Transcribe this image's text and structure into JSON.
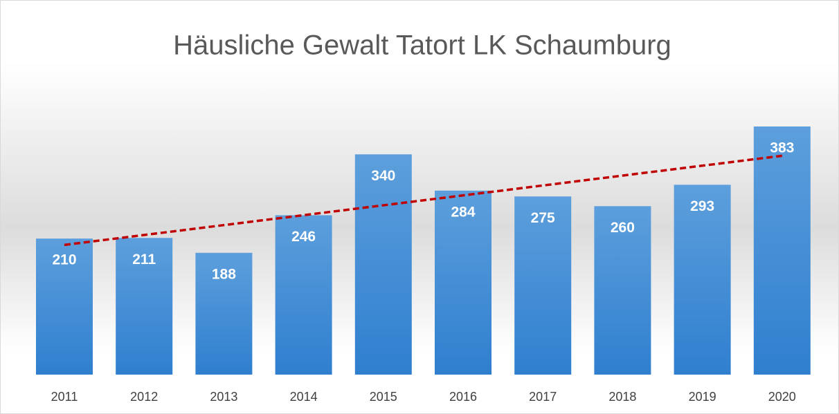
{
  "chart_data": {
    "type": "bar",
    "title": "Häusliche Gewalt Tatort LK Schaumburg",
    "categories": [
      "2011",
      "2012",
      "2013",
      "2014",
      "2015",
      "2016",
      "2017",
      "2018",
      "2019",
      "2020"
    ],
    "values": [
      210,
      211,
      188,
      246,
      340,
      284,
      275,
      260,
      293,
      383
    ],
    "color": "#5b9bd5",
    "trendline": "linear",
    "trendline_color": "#c00000",
    "data_labels": true
  }
}
